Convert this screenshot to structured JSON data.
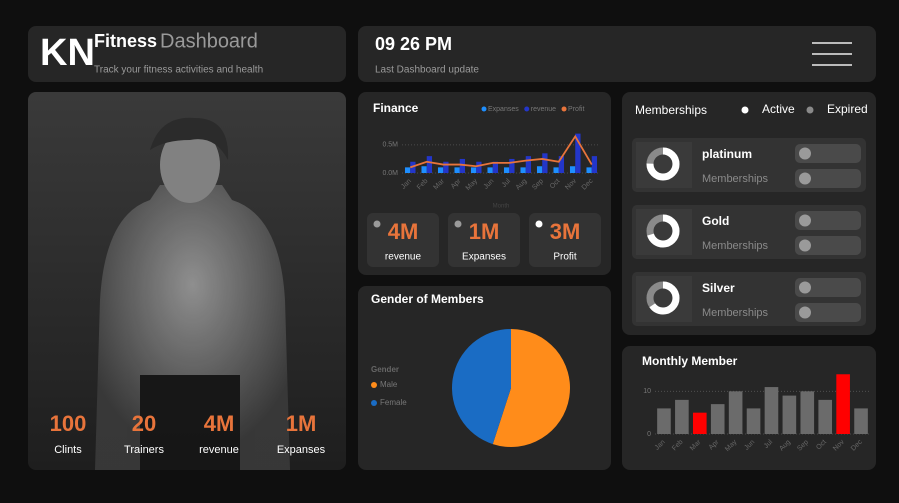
{
  "header": {
    "logo": "KN",
    "title": "Fitness",
    "title_suffix": "Dashboard",
    "subtitle": "Track your fitness activities and health",
    "time": "09 26 PM",
    "time_label": "Last Dashboard update"
  },
  "hero_stats": [
    {
      "value": "100",
      "label": "Clints"
    },
    {
      "value": "20",
      "label": "Trainers"
    },
    {
      "value": "4M",
      "label": "revenue"
    },
    {
      "value": "1M",
      "label": "Expanses"
    }
  ],
  "kpis": [
    {
      "value": "4M",
      "label": "revenue",
      "dot": "#9a9a9a"
    },
    {
      "value": "1M",
      "label": "Expanses",
      "dot": "#9a9a9a"
    },
    {
      "value": "3M",
      "label": "Profit",
      "dot": "#ffffff"
    }
  ],
  "memberships": {
    "title": "Memberships",
    "legend": [
      {
        "name": "Active",
        "color": "#ffffff"
      },
      {
        "name": "Expired",
        "color": "#8a8a8a"
      }
    ],
    "items": [
      {
        "name": "platinum",
        "label": "Memberships",
        "active": 75,
        "expired": 25
      },
      {
        "name": "Gold",
        "label": "Memberships",
        "active": 70,
        "expired": 30
      },
      {
        "name": "Silver",
        "label": "Memberships",
        "active": 65,
        "expired": 35
      }
    ]
  },
  "chart_data": [
    {
      "type": "combo",
      "title": "Finance",
      "x_label": "Month",
      "categories": [
        "Jan",
        "Feb",
        "Mar",
        "Apr",
        "May",
        "Jun",
        "Jul",
        "Aug",
        "Sep",
        "Oct",
        "Nov",
        "Dec"
      ],
      "series": [
        {
          "name": "Expanses",
          "color": "#1e8fff",
          "type": "bar",
          "values": [
            0.1,
            0.12,
            0.1,
            0.1,
            0.1,
            0.1,
            0.1,
            0.1,
            0.12,
            0.1,
            0.12,
            0.1
          ]
        },
        {
          "name": "revenue",
          "color": "#2336c9",
          "type": "bar",
          "values": [
            0.2,
            0.3,
            0.2,
            0.25,
            0.2,
            0.2,
            0.25,
            0.3,
            0.35,
            0.3,
            0.7,
            0.3
          ]
        },
        {
          "name": "Profit",
          "color": "#e8743b",
          "type": "line",
          "values": [
            0.1,
            0.2,
            0.15,
            0.15,
            0.12,
            0.18,
            0.18,
            0.22,
            0.25,
            0.2,
            0.65,
            0.15
          ]
        }
      ],
      "ylim": [
        0,
        0.8
      ],
      "yticks": [
        {
          "value": 0,
          "label": "0.0M"
        },
        {
          "value": 0.5,
          "label": "0.5M"
        }
      ],
      "grid": true
    },
    {
      "type": "pie",
      "title": "Gender of Members",
      "legend_title": "Gender",
      "categories": [
        "Male",
        "Female"
      ],
      "values": [
        55,
        45
      ],
      "colors": [
        "#ff8c1a",
        "#1a6cc4"
      ]
    },
    {
      "type": "bar",
      "title": "Monthly Member",
      "categories": [
        "Jan",
        "Feb",
        "Mar",
        "Apr",
        "May",
        "Jun",
        "Jul",
        "Aug",
        "Sep",
        "Oct",
        "Nov",
        "Dec"
      ],
      "values": [
        6,
        8,
        5,
        7,
        10,
        6,
        11,
        9,
        10,
        8,
        14,
        6
      ],
      "colors": [
        "#6b6b6b",
        "#6b6b6b",
        "#ff0000",
        "#6b6b6b",
        "#6b6b6b",
        "#6b6b6b",
        "#6b6b6b",
        "#6b6b6b",
        "#6b6b6b",
        "#6b6b6b",
        "#ff0000",
        "#6b6b6b"
      ],
      "ylim": [
        0,
        15
      ],
      "yticks": [
        0,
        10
      ],
      "grid": true
    }
  ]
}
